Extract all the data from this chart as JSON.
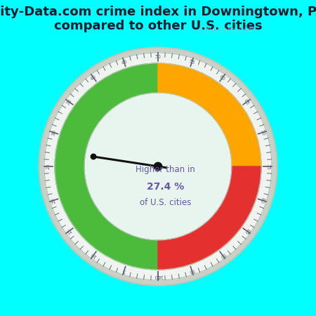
{
  "title": "City-Data.com crime index in Downingtown, PA\ncompared to other U.S. cities",
  "title_fontsize": 13,
  "background_color": "#00FFFF",
  "value": 27.4,
  "label_line1": "Higher than in",
  "label_line2": "27.4 %",
  "label_line3": "of U.S. cities",
  "green_color": "#4CBB3C",
  "orange_color": "#FFA500",
  "red_color": "#E53030",
  "needle_color": "#111111",
  "text_color_label": "#6655aa",
  "tick_color": "#666677",
  "label_color": "#666677",
  "outer_ring_color": "#d0d8d0",
  "inner_bg_color": "#e8f5ee",
  "gauge_shadow_color": "#c8d0c8",
  "watermark": "City-Data.com"
}
